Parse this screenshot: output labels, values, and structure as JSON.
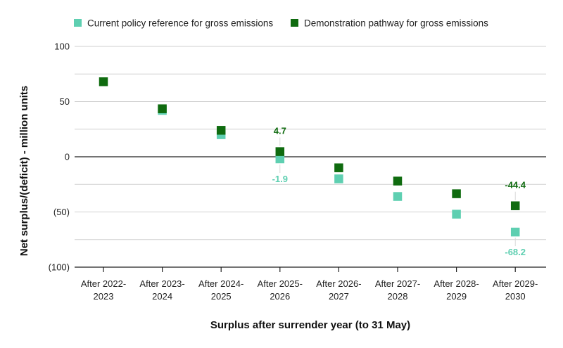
{
  "chart_data": {
    "type": "scatter",
    "categories": [
      "After 2022-2023",
      "After 2023-2024",
      "After 2024-2025",
      "After 2025-2026",
      "After 2026-2027",
      "After 2027-2028",
      "After 2028-2029",
      "After 2029-2030"
    ],
    "category_lines": [
      [
        "After 2022-",
        "2023"
      ],
      [
        "After 2023-",
        "2024"
      ],
      [
        "After 2024-",
        "2025"
      ],
      [
        "After 2025-",
        "2026"
      ],
      [
        "After 2026-",
        "2027"
      ],
      [
        "After 2027-",
        "2028"
      ],
      [
        "After 2028-",
        "2029"
      ],
      [
        "After 2029-",
        "2030"
      ]
    ],
    "series": [
      {
        "name": "Current policy reference for gross emissions",
        "color": "#5ecfb1",
        "values": [
          null,
          42,
          20,
          -1.9,
          -20,
          -36,
          -52,
          -68.2
        ]
      },
      {
        "name": "Demonstration pathway for gross emissions",
        "color": "#0f6b0f",
        "values": [
          68,
          43.5,
          24,
          4.7,
          -10,
          -22,
          -33.5,
          -44.4
        ]
      }
    ],
    "annotations": [
      {
        "series": 1,
        "category": 3,
        "text": "4.7",
        "position": "above"
      },
      {
        "series": 0,
        "category": 3,
        "text": "-1.9",
        "position": "below"
      },
      {
        "series": 1,
        "category": 7,
        "text": "-44.4",
        "position": "above"
      },
      {
        "series": 0,
        "category": 7,
        "text": "-68.2",
        "position": "below"
      }
    ],
    "ylim": [
      -100,
      100
    ],
    "yticks": [
      100,
      50,
      0,
      -50,
      -100
    ],
    "ytick_labels": [
      "100",
      "50",
      "0",
      "(50)",
      "(100)"
    ],
    "ylabel": "Net surplus/(deficit) - million units",
    "xlabel": "Surplus after surrender year (to 31 May)",
    "legend_position": "top",
    "grid": true
  }
}
